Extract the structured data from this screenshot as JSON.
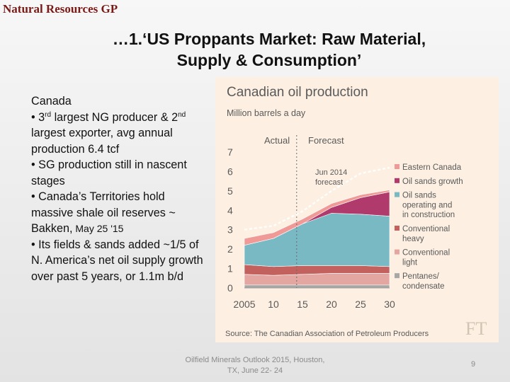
{
  "header": {
    "brand": "Natural Resources GP",
    "title_line1": "…1.‘US Proppants Market: Raw Material,",
    "title_line2": "Supply & Consumption’"
  },
  "body": {
    "heading": "Canada",
    "b1_pre": "• 3",
    "b1_sup1": "rd",
    "b1_mid": " largest NG producer & 2",
    "b1_sup2": "nd",
    "b1_post": " largest exporter, avg annual production 6.4 tcf",
    "b2": "• SG production still in nascent stages",
    "b3_main": "• Canada’s Territories hold massive shale oil reserves ~ Bakken,",
    "b3_date": " May 25 '15",
    "b4": "• Its fields & sands added ~1/5 of N. America’s net oil supply growth over past 5 years, or 1.1m b/d"
  },
  "footer": {
    "line1": "Oilfield Minerals Outlook 2015, Houston,",
    "line2": "TX, June 22- 24",
    "page_number": "9"
  },
  "chart_data": {
    "type": "area",
    "title": "Canadian oil production",
    "subtitle": "Million barrels a day",
    "actual_label": "Actual",
    "forecast_label": "Forecast",
    "annotation": "Jun 2014 forecast",
    "source": "Source: The Canadian Association of Petroleum Producers",
    "logo": "FT",
    "x": [
      2005,
      2010,
      2015,
      2020,
      2025,
      2030
    ],
    "x_tick_labels": [
      "2005",
      "10",
      "15",
      "20",
      "25",
      "30"
    ],
    "y_ticks": [
      "0",
      "1",
      "2",
      "3",
      "4",
      "5",
      "6",
      "7"
    ],
    "ylim": [
      0,
      7
    ],
    "forecast_start": 2014,
    "series": [
      {
        "name": "Pentanes/ condensate",
        "color": "#a7a7a7",
        "values": [
          0.15,
          0.15,
          0.15,
          0.15,
          0.15,
          0.15
        ]
      },
      {
        "name": "Conventional light",
        "color": "#e4a6a1",
        "values": [
          0.55,
          0.5,
          0.55,
          0.6,
          0.6,
          0.6
        ]
      },
      {
        "name": "Conventional heavy",
        "color": "#c3615e",
        "values": [
          0.5,
          0.45,
          0.45,
          0.4,
          0.4,
          0.35
        ]
      },
      {
        "name": "Oil sands operating and in construction",
        "color": "#79b9c3",
        "values": [
          1.0,
          1.45,
          2.15,
          2.7,
          2.65,
          2.6
        ]
      },
      {
        "name": "Oil sands growth",
        "color": "#b03a6b",
        "values": [
          0,
          0,
          0,
          0.3,
          0.85,
          1.25
        ]
      },
      {
        "name": "Eastern Canada",
        "color": "#f09a97",
        "values": [
          0.35,
          0.3,
          0.25,
          0.2,
          0.15,
          0.1
        ]
      }
    ],
    "forecast_line": [
      3.0,
      3.2,
      3.95,
      5.0,
      5.9,
      6.2
    ],
    "legend_lines": [
      [
        "Eastern Canada"
      ],
      [
        "Oil sands growth"
      ],
      [
        "Oil sands",
        "operating and",
        "in construction"
      ],
      [
        "Conventional",
        "heavy"
      ],
      [
        "Conventional",
        "light"
      ],
      [
        "Pentanes/",
        "condensate"
      ]
    ],
    "legend_placement": "right"
  }
}
